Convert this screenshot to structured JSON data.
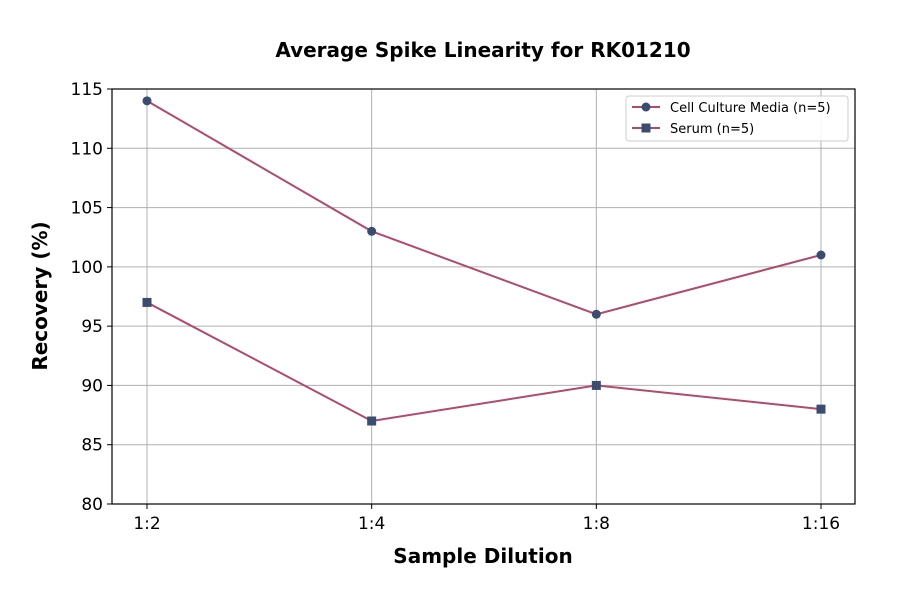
{
  "chart_data": {
    "type": "line",
    "title": "Average Spike Linearity for RK01210",
    "xlabel": "Sample Dilution",
    "ylabel": "Recovery (%)",
    "categories": [
      "1:2",
      "1:4",
      "1:8",
      "1:16"
    ],
    "ylim": [
      80,
      115
    ],
    "yticks": [
      80,
      85,
      90,
      95,
      100,
      105,
      110,
      115
    ],
    "grid": true,
    "legend": "top-right",
    "series": [
      {
        "name": "Cell Culture Media (n=5)",
        "values": [
          114,
          103,
          96,
          101
        ],
        "marker": "circle",
        "line_color": "#b04a6e",
        "marker_color": "#3b4d6e"
      },
      {
        "name": "Serum (n=5)",
        "values": [
          97,
          87,
          90,
          88
        ],
        "marker": "square",
        "line_color": "#b04a6e",
        "marker_color": "#3b4d6e"
      }
    ]
  }
}
